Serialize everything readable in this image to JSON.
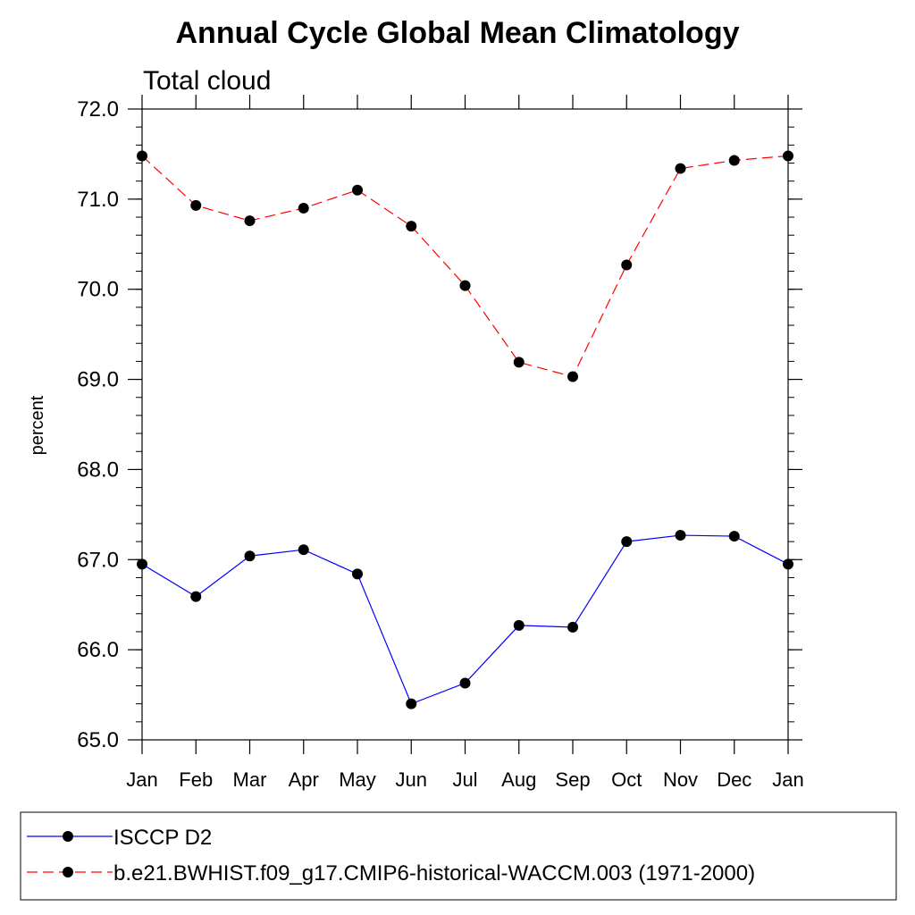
{
  "chart_data": {
    "type": "line",
    "title": "Annual Cycle Global Mean Climatology",
    "subtitle": "Total cloud",
    "ylabel": "percent",
    "xlabel": "",
    "categories": [
      "Jan",
      "Feb",
      "Mar",
      "Apr",
      "May",
      "Jun",
      "Jul",
      "Aug",
      "Sep",
      "Oct",
      "Nov",
      "Dec",
      "Jan"
    ],
    "ylim": [
      65.0,
      72.0
    ],
    "yticks": [
      "65.0",
      "66.0",
      "67.0",
      "68.0",
      "69.0",
      "70.0",
      "71.0",
      "72.0"
    ],
    "series": [
      {
        "name": "ISCCP D2",
        "color": "#0000ff",
        "dashed": false,
        "values": [
          66.95,
          66.59,
          67.04,
          67.11,
          66.84,
          65.4,
          65.63,
          66.27,
          66.25,
          67.2,
          67.27,
          67.26,
          66.95
        ]
      },
      {
        "name": "b.e21.BWHIST.f09_g17.CMIP6-historical-WACCM.003 (1971-2000)",
        "color": "#ff0000",
        "dashed": true,
        "values": [
          71.48,
          70.93,
          70.76,
          70.9,
          71.1,
          70.7,
          70.04,
          69.19,
          69.03,
          70.27,
          71.34,
          71.43,
          71.48
        ]
      }
    ],
    "legend_placement": "bottom"
  }
}
